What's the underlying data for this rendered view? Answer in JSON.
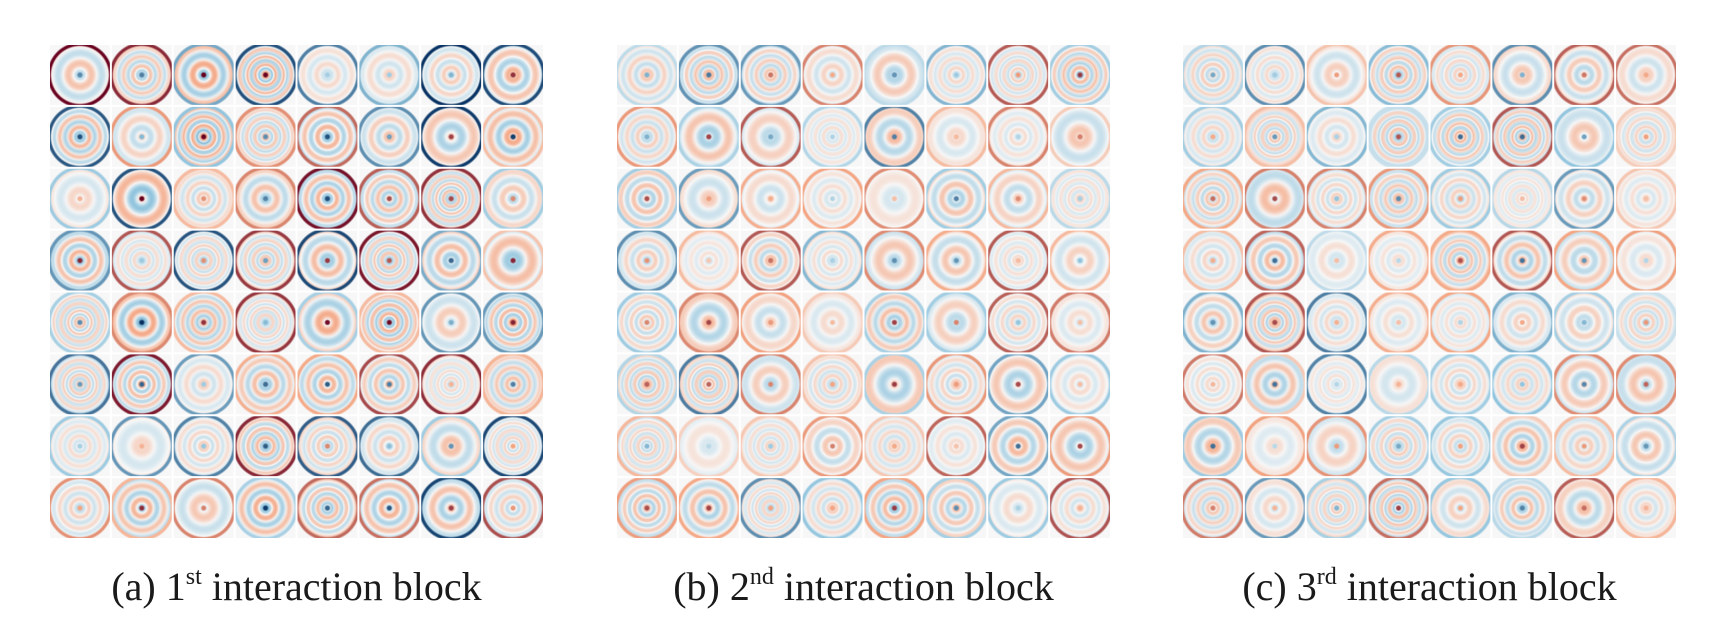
{
  "palette": {
    "negative": "#053061",
    "neutral": "#f7f7f7",
    "positive": "#67001f",
    "cell_gap": "#ffffff"
  },
  "panels": [
    {
      "id": "a",
      "caption": {
        "prefix": "(a) 1",
        "sup": "st",
        "suffix": " interaction block"
      },
      "grid_rows": 8,
      "grid_cols": 8,
      "amplitude": 1.0
    },
    {
      "id": "b",
      "caption": {
        "prefix": "(b) 2",
        "sup": "nd",
        "suffix": " interaction block"
      },
      "grid_rows": 8,
      "grid_cols": 8,
      "amplitude": 0.75
    },
    {
      "id": "c",
      "caption": {
        "prefix": "(c) 3",
        "sup": "rd",
        "suffix": " interaction block"
      },
      "grid_rows": 8,
      "grid_cols": 8,
      "amplitude": 0.75
    }
  ]
}
